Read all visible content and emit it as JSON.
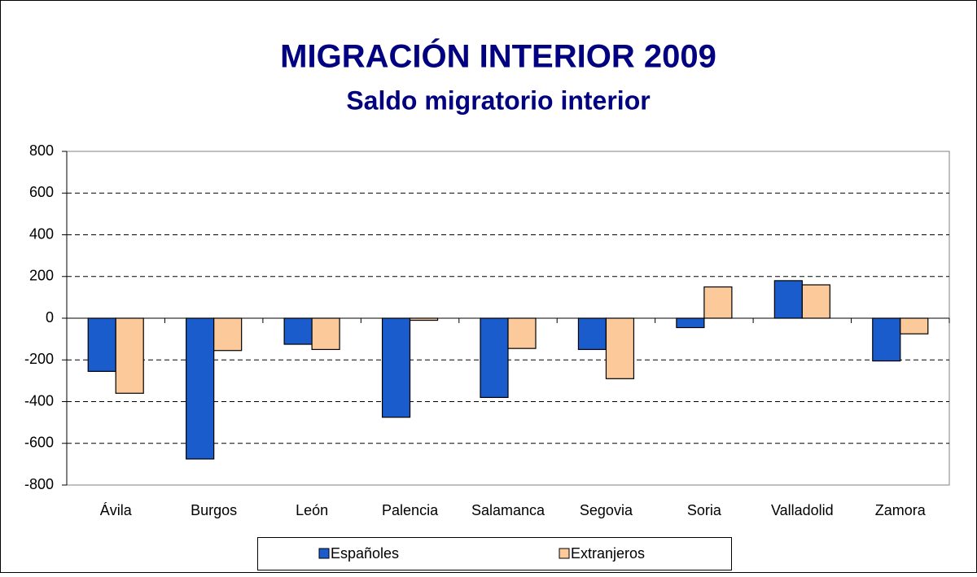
{
  "chart_data": {
    "type": "bar",
    "title": "MIGRACIÓN INTERIOR 2009",
    "subtitle": "Saldo migratorio interior",
    "categories": [
      "Ávila",
      "Burgos",
      "León",
      "Palencia",
      "Salamanca",
      "Segovia",
      "Soria",
      "Valladolid",
      "Zamora"
    ],
    "series": [
      {
        "name": "Españoles",
        "color": "#1a5ccc",
        "values": [
          -255,
          -675,
          -125,
          -475,
          -380,
          -150,
          -45,
          180,
          -205
        ]
      },
      {
        "name": "Extranjeros",
        "color": "#fbc99a",
        "values": [
          -360,
          -155,
          -150,
          -10,
          -145,
          -290,
          150,
          160,
          -75
        ]
      }
    ],
    "ylim": [
      -800,
      800
    ],
    "yticks": [
      -800,
      -600,
      -400,
      -200,
      0,
      200,
      400,
      600,
      800
    ],
    "grid": true,
    "legend": "bottom"
  }
}
